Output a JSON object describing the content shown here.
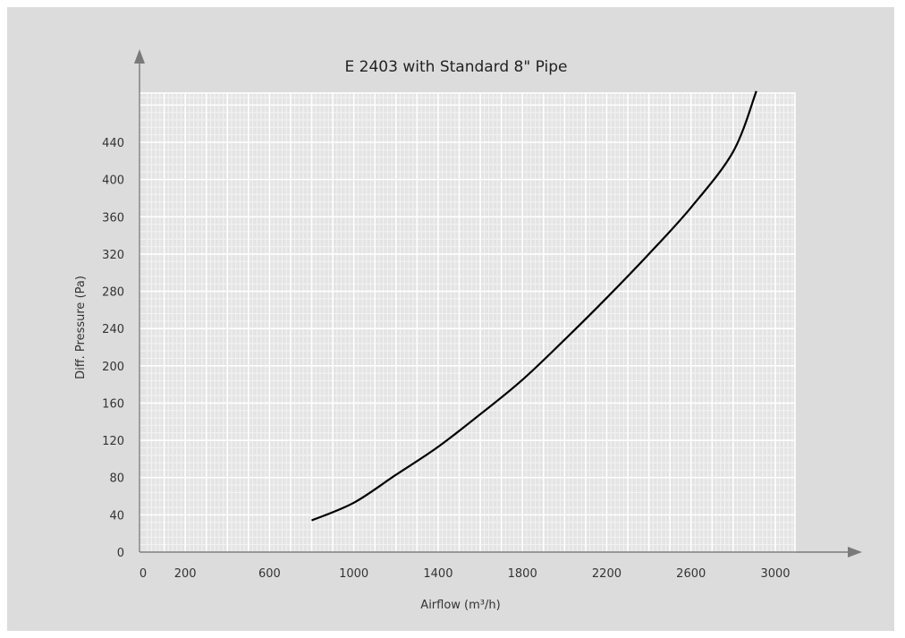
{
  "chart_data": {
    "type": "line",
    "title": "E 2403 with Standard 8\" Pipe",
    "xlabel": "Airflow (m³/h)",
    "ylabel": "Diff. Pressure (Pa)",
    "xlim": [
      0,
      3100
    ],
    "ylim": [
      0,
      495
    ],
    "x_ticks": [
      0,
      200,
      600,
      1000,
      1400,
      1800,
      2200,
      2600,
      3000
    ],
    "y_ticks": [
      0,
      40,
      80,
      120,
      160,
      200,
      240,
      280,
      320,
      360,
      400,
      440
    ],
    "grid": true,
    "legend": "none",
    "series": [
      {
        "x": [
          800,
          1000,
          1200,
          1400,
          1600,
          1800,
          2000,
          2200,
          2400,
          2600,
          2800,
          2910
        ],
        "y": [
          34,
          53,
          83,
          113,
          148,
          185,
          228,
          273,
          320,
          370,
          430,
          495
        ]
      }
    ],
    "colors": {
      "background": "#dcdcdc",
      "plot": "#e4e4e4",
      "grid_major": "#ffffff",
      "grid_minor": "#f3f3f3",
      "line": "#000000",
      "axis": "#7a7a7a"
    }
  }
}
